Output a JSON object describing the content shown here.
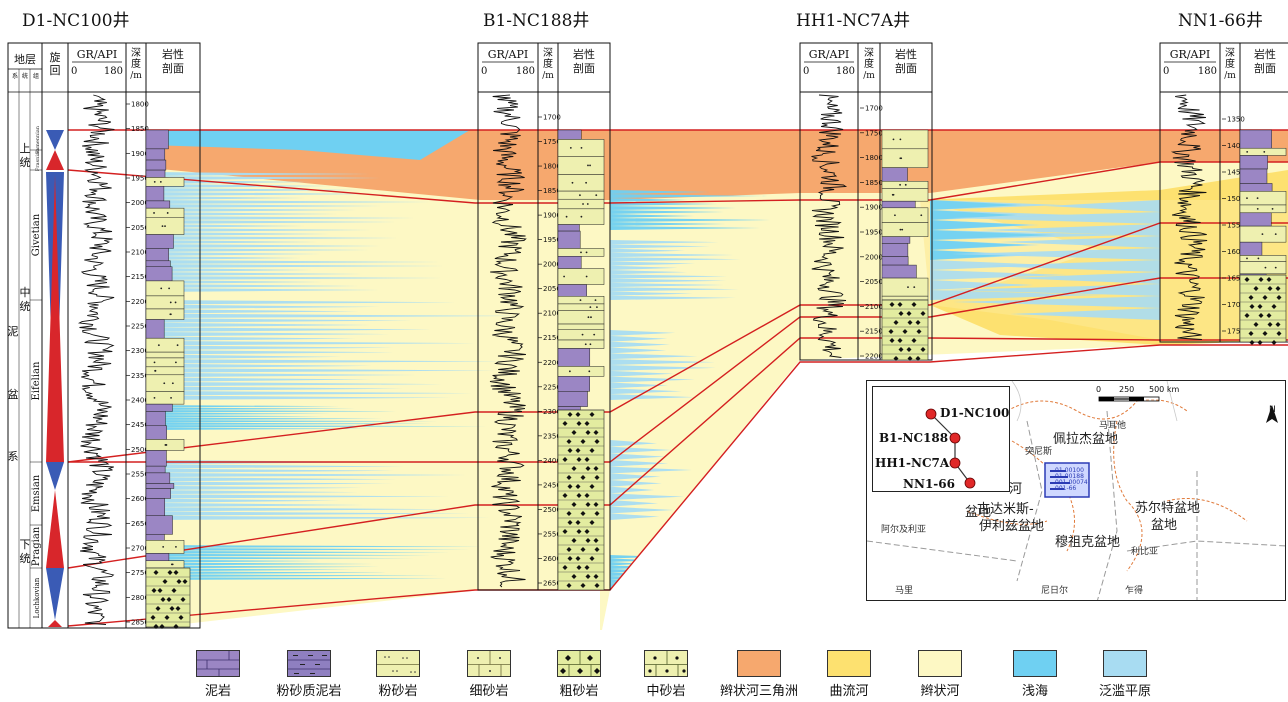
{
  "wells": [
    {
      "id": "d1",
      "title": "D1-NC100井"
    },
    {
      "id": "b1",
      "title": "B1-NC188井"
    },
    {
      "id": "hh1",
      "title": "HH1-NC7A井"
    },
    {
      "id": "nn1",
      "title": "NN1-66井"
    }
  ],
  "column_headers": {
    "stratum": "地层",
    "cycle": "旋回",
    "gr": "GR/API",
    "gr_min": "0",
    "gr_max": "180",
    "depth": "深度/m",
    "lith": "岩性剖面",
    "system": "系",
    "series": "统",
    "stage": "组"
  },
  "strat_labels": {
    "system": "泥盆系",
    "upper_series": "上统",
    "middle_series": "中统",
    "lower_series": "下统",
    "stages": [
      "Famennian",
      "Frasnian",
      "Givetian",
      "Eifelian",
      "Emsian",
      "Pragian",
      "Lochkovian"
    ]
  },
  "depth_ticks": {
    "d1": [
      "1800",
      "1850",
      "1900",
      "1950",
      "2000",
      "2050",
      "2100",
      "2150",
      "2200",
      "2250",
      "2300",
      "2350",
      "2400",
      "2450",
      "2500",
      "2550",
      "2600",
      "2650",
      "2700",
      "2750",
      "2800",
      "2850"
    ],
    "b1": [
      "1700",
      "1750",
      "1800",
      "1850",
      "1900",
      "1950",
      "2000",
      "2050",
      "2100",
      "2150",
      "2200",
      "2250",
      "2300",
      "2350",
      "2400",
      "2450",
      "2500",
      "2550",
      "2600",
      "2650"
    ],
    "hh1": [
      "1700",
      "1750",
      "1800",
      "1850",
      "1900",
      "1950",
      "2000",
      "2050",
      "2100",
      "2150",
      "2200"
    ],
    "nn1": [
      "1350",
      "1400",
      "1450",
      "1500",
      "1550",
      "1600",
      "1650",
      "1700",
      "1750"
    ]
  },
  "legend": [
    {
      "label": "泥岩",
      "kind": "mudstone",
      "color": "#9b86c4"
    },
    {
      "label": "粉砂质泥岩",
      "kind": "silty-mudstone",
      "color": "#8f7fc0"
    },
    {
      "label": "粉砂岩",
      "kind": "siltstone",
      "color": "#eef0b0"
    },
    {
      "label": "细砂岩",
      "kind": "fine-sandstone",
      "color": "#eef0b0"
    },
    {
      "label": "粗砂岩",
      "kind": "coarse-sandstone",
      "color": "#e3eca0"
    },
    {
      "label": "中砂岩",
      "kind": "medium-sandstone",
      "color": "#eef0b0"
    },
    {
      "label": "辫状河三角洲",
      "kind": "facies",
      "color": "#f6a86e"
    },
    {
      "label": "曲流河",
      "kind": "facies",
      "color": "#fde170"
    },
    {
      "label": "辫状河",
      "kind": "facies",
      "color": "#fdf8c4"
    },
    {
      "label": "浅海",
      "kind": "facies",
      "color": "#6fd0f2"
    },
    {
      "label": "泛滥平原",
      "kind": "facies",
      "color": "#a8dcf2"
    }
  ],
  "map": {
    "inset_wells": [
      "D1-NC100",
      "B1-NC188",
      "HH1-NC7A",
      "NN1-66"
    ],
    "scale_labels": [
      "0",
      "250",
      "500 km"
    ],
    "north": "N",
    "basins": [
      "佩拉杰盆地",
      "古达米斯-",
      "伊利兹盆地",
      "穆祖克盆地",
      "苏尔特盆地",
      "盆地"
    ],
    "river_fragment": "河",
    "cities": [
      "马耳他",
      "突尼斯",
      "阿尔及利亚",
      "利比亚",
      "马里",
      "尼日尔",
      "乍得"
    ],
    "mini_well_labels": [
      "01-00100",
      "01-00188",
      "001-00074",
      "001-66"
    ]
  }
}
